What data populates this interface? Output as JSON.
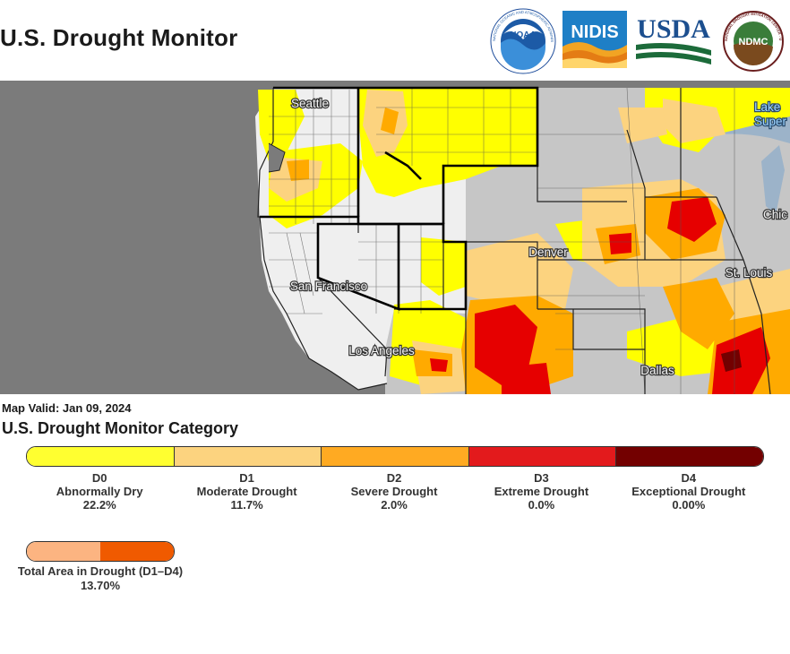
{
  "header": {
    "title": "U.S. Drought Monitor",
    "logos": [
      {
        "name": "NOAA",
        "text": "NOAA",
        "ring_text": "NATIONAL OCEANIC AND ATMOSPHERIC ADMINISTRATION · U.S. DEPARTMENT OF COMMERCE"
      },
      {
        "name": "NIDIS",
        "text": "NIDIS"
      },
      {
        "name": "USDA",
        "text": "USDA"
      },
      {
        "name": "NDMC",
        "text": "NDMC",
        "ring_text": "NATIONAL DROUGHT MITIGATION CENTER · UNIVERSITY OF NEBRASKA"
      }
    ]
  },
  "map": {
    "region": "Western United States",
    "cities": [
      "Seattle",
      "San Francisco",
      "Los Angeles",
      "Denver",
      "Dallas",
      "St. Louis",
      "Chic"
    ],
    "lake_labels": [
      "Lake",
      "Super"
    ],
    "colors": {
      "none_land": "#efefef",
      "outside": "#7b7b7b",
      "no_drought_gray": "#c4c4c4",
      "D0": "#ffff00",
      "D1": "#fcd37f",
      "D2": "#ffaa00",
      "D3": "#e60000",
      "D4": "#730000",
      "water": "#9cb3c9"
    }
  },
  "legend": {
    "map_valid": "Map Valid: Jan 09, 2024",
    "category_title": "U.S. Drought Monitor Category",
    "categories": [
      {
        "code": "D0",
        "name": "Abnormally Dry",
        "percent": "22.2%",
        "color": "#ffff30"
      },
      {
        "code": "D1",
        "name": "Moderate Drought",
        "percent": "11.7%",
        "color": "#fcd37f"
      },
      {
        "code": "D2",
        "name": "Severe Drought",
        "percent": "2.0%",
        "color": "#ffaa22"
      },
      {
        "code": "D3",
        "name": "Extreme Drought",
        "percent": "0.0%",
        "color": "#e31a1c"
      },
      {
        "code": "D4",
        "name": "Exceptional Drought",
        "percent": "0.00%",
        "color": "#730000"
      }
    ],
    "total": {
      "label": "Total Area in Drought (D1–D4)",
      "percent": "13.70%",
      "colors": [
        "#fcb481",
        "#f05a00"
      ]
    }
  }
}
